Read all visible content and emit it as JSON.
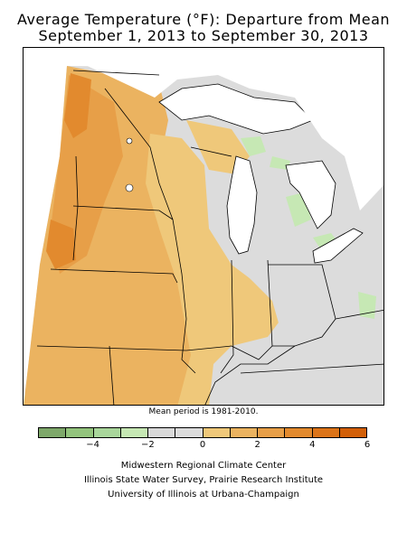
{
  "title": {
    "line1": "Average Temperature (°F): Departure from Mean",
    "line2": "September 1, 2013 to September 30, 2013"
  },
  "note": "Mean period is 1981-2010.",
  "legend": {
    "swatches": [
      "#7ea86a",
      "#93c47d",
      "#a9d69b",
      "#c6e8b4",
      "#d9d9d9",
      "#dcdcdc",
      "#efc87a",
      "#ebb360",
      "#e79f48",
      "#e28a2e",
      "#dc7419",
      "#d25f08"
    ],
    "ticks": [
      {
        "label": "−4",
        "value": -4
      },
      {
        "label": "−2",
        "value": -2
      },
      {
        "label": "0",
        "value": 0
      },
      {
        "label": "2",
        "value": 2
      },
      {
        "label": "4",
        "value": 4
      },
      {
        "label": "6",
        "value": 6
      }
    ],
    "min": -6,
    "max": 6
  },
  "credits": {
    "line1": "Midwestern Regional Climate Center",
    "line2": "Illinois State Water Survey, Prairie Research Institute",
    "line3": "University of Illinois at Urbana-Champaign"
  }
}
